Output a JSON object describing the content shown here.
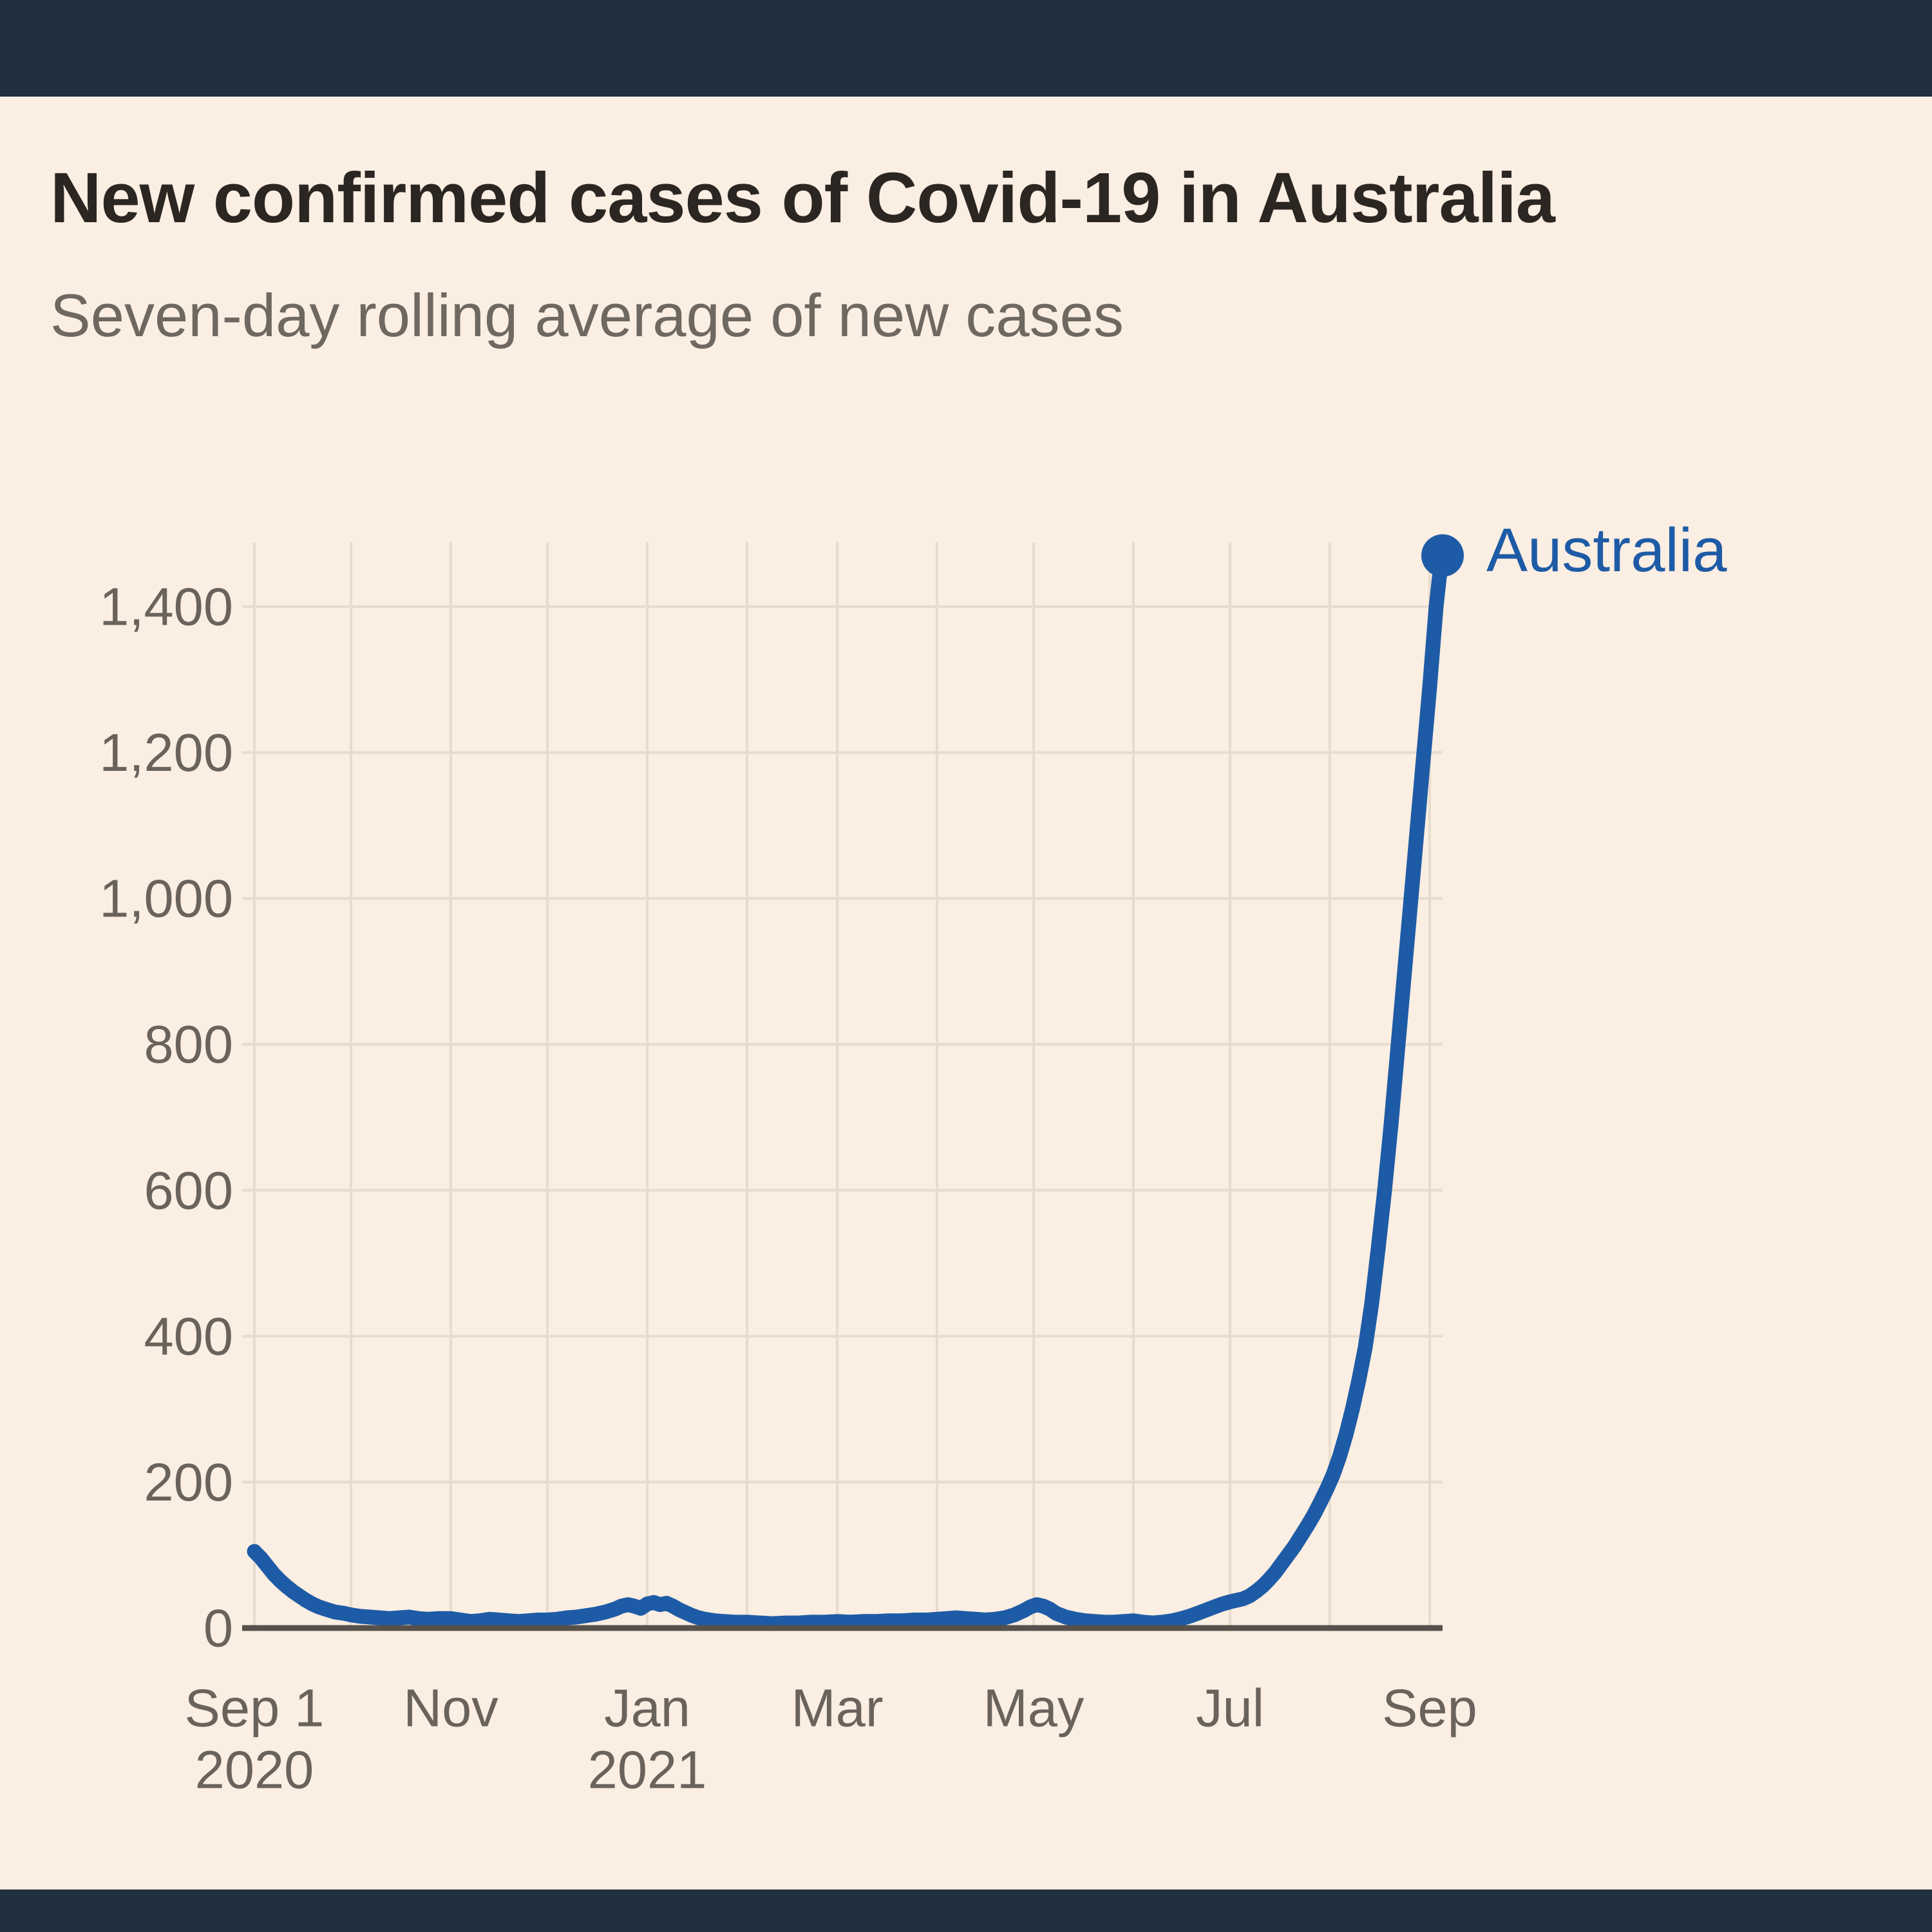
{
  "header": {
    "title": "New confirmed cases of Covid-19 in Australia",
    "subtitle": "Seven-day rolling average of new cases"
  },
  "colors": {
    "background": "#fbeee2",
    "top_bottom_bar": "#213040",
    "title_text": "#2b2622",
    "subtitle_text": "#6f6861",
    "tick_text": "#6a635c",
    "gridline": "#e8dccd",
    "axis_line": "#57514b",
    "series_blue": "#1e5ba6"
  },
  "chart_data": {
    "type": "line",
    "title": "New confirmed cases of Covid-19 in Australia",
    "subtitle": "Seven-day rolling average of new cases",
    "grid": true,
    "legend_position": "end-of-line annotation",
    "x_axis": {
      "unit": "days since 2020-09-01",
      "range_days": [
        0,
        369
      ],
      "start_date_label": "Sep 1 2020",
      "end_value_date": "early Sep 2021",
      "grid_days": [
        0,
        30,
        61,
        91,
        122,
        153,
        181,
        212,
        242,
        273,
        303,
        334,
        365
      ],
      "ticks": [
        {
          "day": 0,
          "label": "Sep 1",
          "sublabel": "2020"
        },
        {
          "day": 61,
          "label": "Nov",
          "sublabel": ""
        },
        {
          "day": 122,
          "label": "Jan",
          "sublabel": "2021"
        },
        {
          "day": 181,
          "label": "Mar",
          "sublabel": ""
        },
        {
          "day": 242,
          "label": "May",
          "sublabel": ""
        },
        {
          "day": 303,
          "label": "Jul",
          "sublabel": ""
        },
        {
          "day": 365,
          "label": "Sep",
          "sublabel": ""
        }
      ]
    },
    "y_axis": {
      "range": [
        0,
        1488
      ],
      "ticks": [
        {
          "value": 0,
          "label": "0"
        },
        {
          "value": 200,
          "label": "200"
        },
        {
          "value": 400,
          "label": "400"
        },
        {
          "value": 600,
          "label": "600"
        },
        {
          "value": 800,
          "label": "800"
        },
        {
          "value": 1000,
          "label": "1,000"
        },
        {
          "value": 1200,
          "label": "1,200"
        },
        {
          "value": 1400,
          "label": "1,400"
        }
      ]
    },
    "series": [
      {
        "name": "Australia",
        "color": "#1e5ba6",
        "endpoint_value": 1470,
        "points": [
          [
            0,
            105
          ],
          [
            2,
            96
          ],
          [
            4,
            85
          ],
          [
            6,
            74
          ],
          [
            8,
            65
          ],
          [
            10,
            57
          ],
          [
            12,
            50
          ],
          [
            14,
            44
          ],
          [
            16,
            38
          ],
          [
            18,
            33
          ],
          [
            20,
            29
          ],
          [
            22,
            26
          ],
          [
            25,
            22
          ],
          [
            28,
            20
          ],
          [
            30,
            18
          ],
          [
            33,
            16
          ],
          [
            36,
            15
          ],
          [
            39,
            14
          ],
          [
            42,
            13
          ],
          [
            45,
            14
          ],
          [
            48,
            15
          ],
          [
            51,
            13
          ],
          [
            54,
            12
          ],
          [
            57,
            13
          ],
          [
            61,
            13
          ],
          [
            64,
            11
          ],
          [
            67,
            9
          ],
          [
            70,
            10
          ],
          [
            73,
            12
          ],
          [
            76,
            11
          ],
          [
            79,
            10
          ],
          [
            82,
            9
          ],
          [
            85,
            10
          ],
          [
            88,
            11
          ],
          [
            91,
            11
          ],
          [
            94,
            12
          ],
          [
            97,
            14
          ],
          [
            100,
            15
          ],
          [
            103,
            17
          ],
          [
            106,
            19
          ],
          [
            109,
            22
          ],
          [
            112,
            26
          ],
          [
            114,
            30
          ],
          [
            116,
            32
          ],
          [
            118,
            30
          ],
          [
            120,
            27
          ],
          [
            122,
            33
          ],
          [
            124,
            35
          ],
          [
            126,
            32
          ],
          [
            128,
            34
          ],
          [
            130,
            30
          ],
          [
            132,
            25
          ],
          [
            134,
            21
          ],
          [
            136,
            17
          ],
          [
            138,
            14
          ],
          [
            140,
            12
          ],
          [
            143,
            10
          ],
          [
            146,
            9
          ],
          [
            149,
            8
          ],
          [
            153,
            8
          ],
          [
            157,
            7
          ],
          [
            161,
            6
          ],
          [
            165,
            7
          ],
          [
            169,
            7
          ],
          [
            173,
            8
          ],
          [
            177,
            8
          ],
          [
            181,
            9
          ],
          [
            185,
            8
          ],
          [
            189,
            9
          ],
          [
            193,
            9
          ],
          [
            197,
            10
          ],
          [
            201,
            10
          ],
          [
            205,
            11
          ],
          [
            209,
            11
          ],
          [
            212,
            12
          ],
          [
            215,
            13
          ],
          [
            218,
            14
          ],
          [
            221,
            13
          ],
          [
            224,
            12
          ],
          [
            227,
            11
          ],
          [
            230,
            12
          ],
          [
            233,
            14
          ],
          [
            236,
            18
          ],
          [
            239,
            24
          ],
          [
            241,
            29
          ],
          [
            243,
            32
          ],
          [
            245,
            30
          ],
          [
            247,
            26
          ],
          [
            249,
            20
          ],
          [
            252,
            15
          ],
          [
            255,
            12
          ],
          [
            258,
            10
          ],
          [
            261,
            9
          ],
          [
            264,
            8
          ],
          [
            267,
            8
          ],
          [
            270,
            9
          ],
          [
            273,
            10
          ],
          [
            276,
            8
          ],
          [
            279,
            7
          ],
          [
            282,
            8
          ],
          [
            285,
            10
          ],
          [
            288,
            13
          ],
          [
            291,
            17
          ],
          [
            294,
            22
          ],
          [
            297,
            27
          ],
          [
            300,
            32
          ],
          [
            303,
            36
          ],
          [
            305,
            38
          ],
          [
            307,
            40
          ],
          [
            309,
            44
          ],
          [
            311,
            50
          ],
          [
            313,
            57
          ],
          [
            315,
            66
          ],
          [
            317,
            76
          ],
          [
            319,
            88
          ],
          [
            321,
            100
          ],
          [
            323,
            112
          ],
          [
            325,
            126
          ],
          [
            327,
            140
          ],
          [
            329,
            155
          ],
          [
            331,
            172
          ],
          [
            333,
            190
          ],
          [
            335,
            210
          ],
          [
            337,
            235
          ],
          [
            339,
            265
          ],
          [
            341,
            300
          ],
          [
            343,
            340
          ],
          [
            345,
            385
          ],
          [
            347,
            445
          ],
          [
            349,
            520
          ],
          [
            351,
            600
          ],
          [
            353,
            690
          ],
          [
            355,
            790
          ],
          [
            357,
            890
          ],
          [
            359,
            990
          ],
          [
            361,
            1090
          ],
          [
            363,
            1190
          ],
          [
            365,
            1290
          ],
          [
            366,
            1345
          ],
          [
            367,
            1400
          ],
          [
            368,
            1440
          ],
          [
            369,
            1470
          ]
        ]
      }
    ]
  }
}
